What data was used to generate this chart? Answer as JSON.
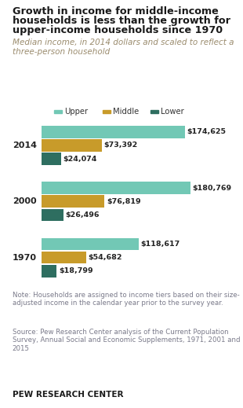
{
  "title_line1": "Growth in income for middle-income",
  "title_line2": "households is less than the growth for",
  "title_line3": "upper-income households since 1970",
  "subtitle": "Median income, in 2014 dollars and scaled to reflect a\nthree-person household",
  "years": [
    "2014",
    "2000",
    "1970"
  ],
  "upper_values": [
    174625,
    180769,
    118617
  ],
  "middle_values": [
    73392,
    76819,
    54682
  ],
  "lower_values": [
    24074,
    26496,
    18799
  ],
  "upper_color": "#72C8B5",
  "middle_color": "#C89B2A",
  "lower_color": "#2E6E60",
  "upper_label": "Upper",
  "middle_label": "Middle",
  "lower_label": "Lower",
  "note": "Note: Households are assigned to income tiers based on their size-\nadjusted income in the calendar year prior to the survey year.",
  "source": "Source: Pew Research Center analysis of the Current Population\nSurvey, Annual Social and Economic Supplements, 1971, 2001 and\n2015",
  "branding": "PEW RESEARCH CENTER",
  "title_color": "#1a1a1a",
  "subtitle_color": "#9b8c6e",
  "note_color": "#7a7a8a",
  "source_color": "#7a7a8a",
  "branding_color": "#1a1a1a",
  "max_value": 195000,
  "bg_color": "#FFFFFF"
}
